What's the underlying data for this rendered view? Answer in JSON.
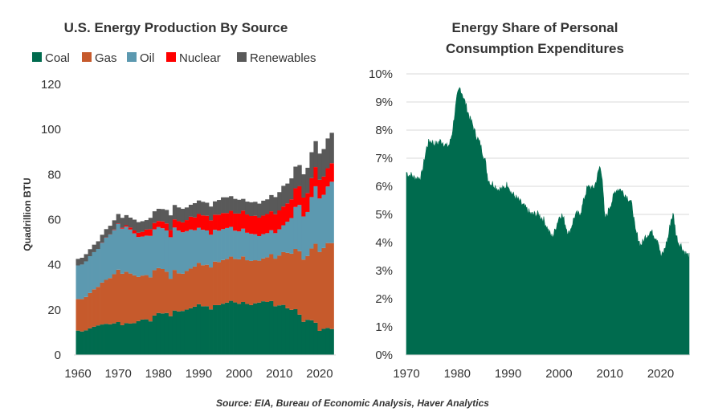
{
  "chart_data": [
    {
      "type": "area",
      "stacked": true,
      "title": "U.S. Energy Production By Source",
      "xlabel": "",
      "ylabel": "Quadrillion BTU",
      "xlim": [
        1959,
        2024
      ],
      "ylim": [
        0,
        120
      ],
      "x_ticks": [
        1960,
        1970,
        1980,
        1990,
        2000,
        2010,
        2020
      ],
      "y_ticks": [
        0,
        20,
        40,
        60,
        80,
        100,
        120
      ],
      "legend_position": "top",
      "x": [
        1960,
        1961,
        1962,
        1963,
        1964,
        1965,
        1966,
        1967,
        1968,
        1969,
        1970,
        1971,
        1972,
        1973,
        1974,
        1975,
        1976,
        1977,
        1978,
        1979,
        1980,
        1981,
        1982,
        1983,
        1984,
        1985,
        1986,
        1987,
        1988,
        1989,
        1990,
        1991,
        1992,
        1993,
        1994,
        1995,
        1996,
        1997,
        1998,
        1999,
        2000,
        2001,
        2002,
        2003,
        2004,
        2005,
        2006,
        2007,
        2008,
        2009,
        2010,
        2011,
        2012,
        2013,
        2014,
        2015,
        2016,
        2017,
        2018,
        2019,
        2020,
        2021,
        2022,
        2023
      ],
      "series": [
        {
          "name": "Coal",
          "color": "#006B4E",
          "values": [
            10.8,
            10.4,
            10.9,
            11.8,
            12.5,
            13.1,
            13.5,
            13.8,
            13.6,
            14.0,
            14.6,
            13.2,
            14.1,
            13.9,
            14.1,
            15.0,
            15.7,
            15.8,
            14.9,
            17.5,
            18.6,
            18.4,
            18.6,
            17.2,
            19.7,
            19.3,
            19.5,
            20.1,
            20.7,
            21.4,
            22.5,
            21.6,
            21.6,
            20.2,
            22.1,
            22.1,
            22.7,
            23.2,
            24.0,
            23.3,
            22.7,
            23.5,
            22.6,
            22.1,
            22.9,
            23.2,
            23.8,
            23.5,
            23.9,
            21.6,
            22.0,
            22.2,
            20.7,
            20.0,
            20.3,
            17.9,
            14.7,
            15.6,
            15.4,
            14.3,
            10.7,
            11.6,
            12.0,
            11.5
          ]
        },
        {
          "name": "Gas",
          "color": "#C65A2C",
          "values": [
            14.0,
            14.4,
            14.8,
            15.7,
            16.6,
            17.1,
            18.6,
            19.5,
            20.5,
            21.8,
            23.2,
            22.8,
            22.8,
            22.2,
            21.2,
            19.6,
            19.5,
            19.6,
            19.5,
            20.1,
            19.9,
            19.7,
            18.3,
            16.6,
            18.0,
            16.9,
            16.5,
            17.1,
            17.6,
            17.8,
            18.3,
            18.2,
            18.4,
            18.6,
            19.3,
            19.1,
            19.4,
            19.4,
            19.6,
            19.3,
            19.7,
            20.2,
            19.4,
            19.6,
            19.1,
            18.6,
            19.0,
            19.8,
            20.8,
            21.1,
            22.1,
            23.4,
            24.6,
            24.9,
            26.7,
            28.1,
            27.6,
            28.3,
            31.8,
            35.0,
            35.0,
            35.8,
            37.6,
            38.1
          ]
        },
        {
          "name": "Oil",
          "color": "#5C99B0",
          "values": [
            14.9,
            15.3,
            15.8,
            16.3,
            16.5,
            16.8,
            17.6,
            18.7,
            19.3,
            19.6,
            20.4,
            20.0,
            20.0,
            19.5,
            18.6,
            17.7,
            17.3,
            17.5,
            18.4,
            18.1,
            18.2,
            18.1,
            18.3,
            18.4,
            18.8,
            19.0,
            18.4,
            17.7,
            17.3,
            16.1,
            15.6,
            15.7,
            15.2,
            14.5,
            14.1,
            13.9,
            13.7,
            13.7,
            13.2,
            12.5,
            12.4,
            12.3,
            12.2,
            12.0,
            11.5,
            10.9,
            10.8,
            10.7,
            10.6,
            11.3,
            11.6,
            11.9,
            13.8,
            15.8,
            18.6,
            20.5,
            19.1,
            19.5,
            22.8,
            25.5,
            23.7,
            23.6,
            25.1,
            27.2
          ]
        },
        {
          "name": "Nuclear",
          "color": "#FF0000",
          "values": [
            0.0,
            0.0,
            0.0,
            0.0,
            0.0,
            0.0,
            0.1,
            0.1,
            0.1,
            0.2,
            0.2,
            0.4,
            0.6,
            0.9,
            1.3,
            1.9,
            2.1,
            2.7,
            3.0,
            2.8,
            2.7,
            3.0,
            3.1,
            3.2,
            3.6,
            4.1,
            4.4,
            4.9,
            5.7,
            5.7,
            6.1,
            6.4,
            6.5,
            6.4,
            6.7,
            7.1,
            7.1,
            6.6,
            7.1,
            7.6,
            7.9,
            8.0,
            8.1,
            7.9,
            8.2,
            8.2,
            8.2,
            8.5,
            8.4,
            8.4,
            8.4,
            8.3,
            8.1,
            8.3,
            8.3,
            8.3,
            8.4,
            8.4,
            8.4,
            8.5,
            8.3,
            8.1,
            8.1,
            8.2
          ]
        },
        {
          "name": "Renewables",
          "color": "#595959",
          "values": [
            2.9,
            3.0,
            3.2,
            3.1,
            3.3,
            3.4,
            3.5,
            3.7,
            3.8,
            4.1,
            4.1,
            4.4,
            4.5,
            4.4,
            4.8,
            4.7,
            4.7,
            4.2,
            5.0,
            5.2,
            5.4,
            5.5,
            6.0,
            6.5,
            6.4,
            6.1,
            6.0,
            5.6,
            5.3,
            6.3,
            6.0,
            6.0,
            5.8,
            6.1,
            5.9,
            6.5,
            7.0,
            7.0,
            6.5,
            6.5,
            6.1,
            5.2,
            5.7,
            6.1,
            6.2,
            6.2,
            6.6,
            6.5,
            7.2,
            7.6,
            8.1,
            9.2,
            8.8,
            9.3,
            9.6,
            9.4,
            10.3,
            11.2,
            11.5,
            11.5,
            11.6,
            12.2,
            13.2,
            13.5
          ]
        }
      ]
    },
    {
      "type": "area",
      "title": "Energy Share of Personal Consumption Expenditures",
      "title_lines": [
        "Energy Share of Personal",
        "Consumption Expenditures"
      ],
      "xlabel": "",
      "ylabel": "",
      "xlim": [
        1970,
        2025.6
      ],
      "ylim": [
        0,
        10
      ],
      "x_ticks": [
        1970,
        1980,
        1990,
        2000,
        2010,
        2020
      ],
      "y_ticks": [
        0,
        1,
        2,
        3,
        4,
        5,
        6,
        7,
        8,
        9,
        10
      ],
      "y_tick_labels": [
        "0%",
        "1%",
        "2%",
        "3%",
        "4%",
        "5%",
        "6%",
        "7%",
        "8%",
        "9%",
        "10%"
      ],
      "grid": true,
      "series": [
        {
          "name": "Energy share of PCE",
          "color": "#006B4E",
          "x": [
            1970.0,
            1970.5,
            1971.0,
            1971.5,
            1972.0,
            1972.5,
            1973.0,
            1973.5,
            1974.0,
            1974.5,
            1975.0,
            1975.5,
            1976.0,
            1976.5,
            1977.0,
            1977.5,
            1978.0,
            1978.5,
            1979.0,
            1979.5,
            1980.0,
            1980.5,
            1981.0,
            1981.5,
            1982.0,
            1982.5,
            1983.0,
            1983.5,
            1984.0,
            1984.5,
            1985.0,
            1985.5,
            1986.0,
            1986.5,
            1987.0,
            1987.5,
            1988.0,
            1988.5,
            1989.0,
            1989.5,
            1990.0,
            1990.5,
            1991.0,
            1991.5,
            1992.0,
            1992.5,
            1993.0,
            1993.5,
            1994.0,
            1994.5,
            1995.0,
            1995.5,
            1996.0,
            1996.5,
            1997.0,
            1997.5,
            1998.0,
            1998.5,
            1999.0,
            1999.5,
            2000.0,
            2000.5,
            2001.0,
            2001.5,
            2002.0,
            2002.5,
            2003.0,
            2003.5,
            2004.0,
            2004.5,
            2005.0,
            2005.5,
            2006.0,
            2006.5,
            2007.0,
            2007.5,
            2008.0,
            2008.5,
            2009.0,
            2009.5,
            2010.0,
            2010.5,
            2011.0,
            2011.5,
            2012.0,
            2012.5,
            2013.0,
            2013.5,
            2014.0,
            2014.5,
            2015.0,
            2015.5,
            2016.0,
            2016.5,
            2017.0,
            2017.5,
            2018.0,
            2018.5,
            2019.0,
            2019.5,
            2020.0,
            2020.5,
            2021.0,
            2021.5,
            2022.0,
            2022.5,
            2023.0,
            2023.5,
            2024.0,
            2024.5,
            2025.0,
            2025.5
          ],
          "values": [
            6.5,
            6.4,
            6.4,
            6.3,
            6.3,
            6.3,
            6.4,
            6.9,
            7.4,
            7.6,
            7.6,
            7.5,
            7.5,
            7.6,
            7.6,
            7.5,
            7.4,
            7.5,
            7.9,
            8.6,
            9.2,
            9.5,
            9.3,
            9.0,
            8.7,
            8.4,
            8.2,
            7.9,
            7.7,
            7.5,
            7.2,
            6.9,
            6.3,
            6.1,
            6.1,
            6.0,
            5.9,
            5.9,
            5.9,
            6.0,
            6.1,
            5.8,
            5.7,
            5.6,
            5.5,
            5.4,
            5.3,
            5.2,
            5.1,
            5.0,
            5.0,
            5.0,
            5.0,
            4.9,
            4.8,
            4.6,
            4.4,
            4.2,
            4.3,
            4.6,
            4.9,
            5.0,
            4.8,
            4.5,
            4.3,
            4.6,
            4.9,
            5.0,
            5.0,
            5.2,
            5.6,
            5.9,
            6.0,
            5.9,
            6.0,
            6.3,
            6.7,
            6.4,
            4.8,
            5.0,
            5.3,
            5.5,
            5.8,
            5.9,
            5.9,
            5.8,
            5.7,
            5.6,
            5.5,
            5.2,
            4.4,
            4.2,
            3.9,
            4.0,
            4.2,
            4.3,
            4.4,
            4.3,
            4.2,
            4.1,
            3.5,
            3.6,
            3.9,
            4.2,
            4.8,
            5.0,
            4.3,
            4.0,
            3.9,
            3.7,
            3.6,
            3.5
          ]
        }
      ]
    }
  ],
  "source_note": "Source: EIA, Bureau of Economic Analysis, Haver Analytics"
}
